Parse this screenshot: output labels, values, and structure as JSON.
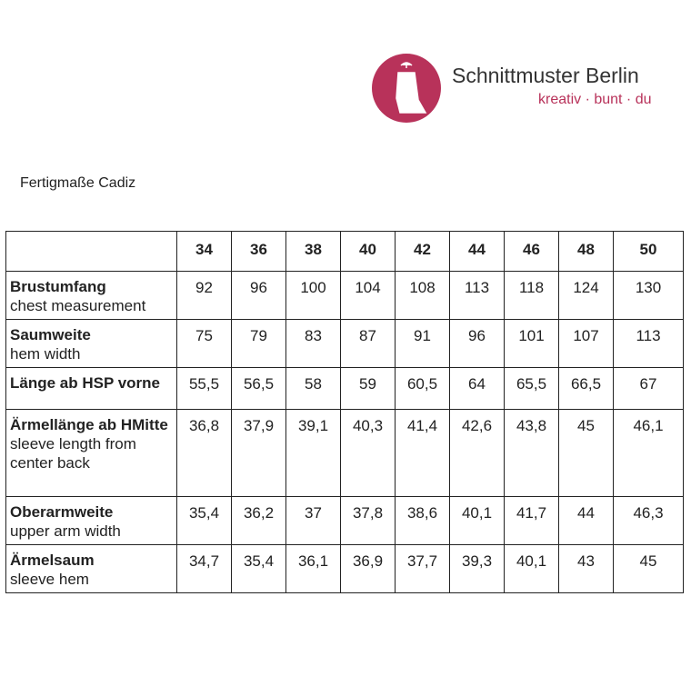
{
  "logo": {
    "brand": "Schnittmuster Berlin",
    "tagline": "kreativ · bunt · du"
  },
  "title": "Fertigmaße Cadiz",
  "table": {
    "sizes": [
      "34",
      "36",
      "38",
      "40",
      "42",
      "44",
      "46",
      "48",
      "50"
    ],
    "rows": [
      {
        "label": "Brustumfang",
        "sublabel": "chest measurement",
        "values": [
          "92",
          "96",
          "100",
          "104",
          "108",
          "113",
          "118",
          "124",
          "130"
        ]
      },
      {
        "label": "Saumweite",
        "sublabel": "hem width",
        "values": [
          "75",
          "79",
          "83",
          "87",
          "91",
          "96",
          "101",
          "107",
          "113"
        ]
      },
      {
        "label": "Länge ab HSP vorne",
        "values": [
          "55,5",
          "56,5",
          "58",
          "59",
          "60,5",
          "64",
          "65,5",
          "66,5",
          "67"
        ]
      },
      {
        "label": "Ärmellänge ab HMitte",
        "sublabel": "sleeve length from center back",
        "values": [
          "36,8",
          "37,9",
          "39,1",
          "40,3",
          "41,4",
          "42,6",
          "43,8",
          "45",
          "46,1"
        ]
      },
      {
        "label": "Oberarmweite",
        "sublabel": "upper arm width",
        "values": [
          "35,4",
          "36,2",
          "37",
          "37,8",
          "38,6",
          "40,1",
          "41,7",
          "44",
          "46,3"
        ]
      },
      {
        "label": "Ärmelsaum",
        "sublabel": "sleeve hem",
        "values": [
          "34,7",
          "35,4",
          "36,1",
          "36,9",
          "37,7",
          "39,3",
          "40,1",
          "43",
          "45"
        ]
      }
    ]
  }
}
